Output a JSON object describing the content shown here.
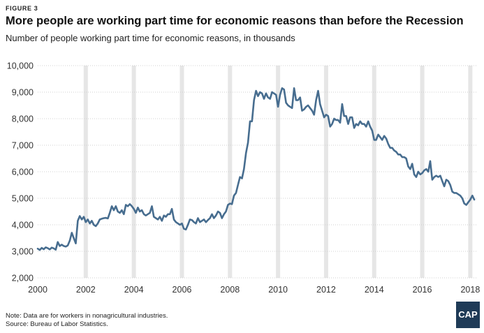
{
  "figure_label": "FIGURE 3",
  "notes": {
    "note": "Note: Data are for workers in nonagricultural industries.",
    "source": "Source: Bureau of Labor Statistics."
  },
  "logo": {
    "text": "CAP"
  },
  "colors": {
    "line": "#476d8f",
    "band": "#e6e6e6",
    "grid": "#d0d0d0"
  },
  "chart_data": {
    "type": "line",
    "title": "More people are working part time for economic reasons than before the Recession",
    "subtitle": "Number of people working part time for economic reasons, in thousands",
    "xlabel": "",
    "ylabel": "",
    "xlim": [
      2000,
      2018.25
    ],
    "ylim": [
      2000,
      10000
    ],
    "y_ticks": [
      2000,
      3000,
      4000,
      5000,
      6000,
      7000,
      8000,
      9000,
      10000
    ],
    "y_tick_labels": [
      "2,000",
      "3,000",
      "4,000",
      "5,000",
      "6,000",
      "7,000",
      "8,000",
      "9,000",
      "10,000"
    ],
    "x_ticks": [
      2000,
      2002,
      2004,
      2006,
      2008,
      2010,
      2012,
      2014,
      2016,
      2018
    ],
    "x_tick_labels": [
      "2000",
      "2002",
      "2004",
      "2006",
      "2008",
      "2010",
      "2012",
      "2014",
      "2016",
      "2018"
    ],
    "grid": true,
    "shaded_bands": [
      2002,
      2004,
      2006,
      2008,
      2010,
      2012,
      2014,
      2016,
      2018
    ],
    "series": [
      {
        "x": [
          2000.0,
          2000.083,
          2000.167,
          2000.25,
          2000.333,
          2000.417,
          2000.5,
          2000.583,
          2000.667,
          2000.75,
          2000.833,
          2000.917,
          2001.0,
          2001.083,
          2001.167,
          2001.25,
          2001.333,
          2001.417,
          2001.5,
          2001.583,
          2001.667,
          2001.75,
          2001.833,
          2001.917,
          2002.0,
          2002.083,
          2002.167,
          2002.25,
          2002.333,
          2002.417,
          2002.5,
          2002.583,
          2002.667,
          2002.75,
          2002.833,
          2002.917,
          2003.0,
          2003.083,
          2003.167,
          2003.25,
          2003.333,
          2003.417,
          2003.5,
          2003.583,
          2003.667,
          2003.75,
          2003.833,
          2003.917,
          2004.0,
          2004.083,
          2004.167,
          2004.25,
          2004.333,
          2004.417,
          2004.5,
          2004.583,
          2004.667,
          2004.75,
          2004.833,
          2004.917,
          2005.0,
          2005.083,
          2005.167,
          2005.25,
          2005.333,
          2005.417,
          2005.5,
          2005.583,
          2005.667,
          2005.75,
          2005.833,
          2005.917,
          2006.0,
          2006.083,
          2006.167,
          2006.25,
          2006.333,
          2006.417,
          2006.5,
          2006.583,
          2006.667,
          2006.75,
          2006.833,
          2006.917,
          2007.0,
          2007.083,
          2007.167,
          2007.25,
          2007.333,
          2007.417,
          2007.5,
          2007.583,
          2007.667,
          2007.75,
          2007.833,
          2007.917,
          2008.0,
          2008.083,
          2008.167,
          2008.25,
          2008.333,
          2008.417,
          2008.5,
          2008.583,
          2008.667,
          2008.75,
          2008.833,
          2008.917,
          2009.0,
          2009.083,
          2009.167,
          2009.25,
          2009.333,
          2009.417,
          2009.5,
          2009.583,
          2009.667,
          2009.75,
          2009.833,
          2009.917,
          2010.0,
          2010.083,
          2010.167,
          2010.25,
          2010.333,
          2010.417,
          2010.5,
          2010.583,
          2010.667,
          2010.75,
          2010.833,
          2010.917,
          2011.0,
          2011.083,
          2011.167,
          2011.25,
          2011.333,
          2011.417,
          2011.5,
          2011.583,
          2011.667,
          2011.75,
          2011.833,
          2011.917,
          2012.0,
          2012.083,
          2012.167,
          2012.25,
          2012.333,
          2012.417,
          2012.5,
          2012.583,
          2012.667,
          2012.75,
          2012.833,
          2012.917,
          2013.0,
          2013.083,
          2013.167,
          2013.25,
          2013.333,
          2013.417,
          2013.5,
          2013.583,
          2013.667,
          2013.75,
          2013.833,
          2013.917,
          2014.0,
          2014.083,
          2014.167,
          2014.25,
          2014.333,
          2014.417,
          2014.5,
          2014.583,
          2014.667,
          2014.75,
          2014.833,
          2014.917,
          2015.0,
          2015.083,
          2015.167,
          2015.25,
          2015.333,
          2015.417,
          2015.5,
          2015.583,
          2015.667,
          2015.75,
          2015.833,
          2015.917,
          2016.0,
          2016.083,
          2016.167,
          2016.25,
          2016.333,
          2016.417,
          2016.5,
          2016.583,
          2016.667,
          2016.75,
          2016.833,
          2016.917,
          2017.0,
          2017.083,
          2017.167,
          2017.25,
          2017.333,
          2017.417,
          2017.5,
          2017.583,
          2017.667,
          2017.75,
          2017.833,
          2017.917,
          2018.0,
          2018.083,
          2018.167
        ],
        "values": [
          3100,
          3050,
          3130,
          3080,
          3150,
          3120,
          3070,
          3140,
          3110,
          3060,
          3350,
          3200,
          3250,
          3200,
          3180,
          3220,
          3400,
          3700,
          3500,
          3300,
          4150,
          4330,
          4200,
          4300,
          4100,
          4200,
          4050,
          4150,
          4000,
          3950,
          4050,
          4200,
          4230,
          4250,
          4260,
          4240,
          4450,
          4700,
          4550,
          4700,
          4500,
          4450,
          4550,
          4400,
          4750,
          4700,
          4780,
          4700,
          4600,
          4450,
          4650,
          4500,
          4550,
          4400,
          4350,
          4400,
          4450,
          4700,
          4300,
          4250,
          4200,
          4300,
          4150,
          4350,
          4300,
          4400,
          4400,
          4600,
          4200,
          4100,
          4050,
          4000,
          4050,
          3850,
          3820,
          4000,
          4200,
          4180,
          4100,
          4050,
          4250,
          4100,
          4150,
          4200,
          4100,
          4180,
          4250,
          4400,
          4250,
          4350,
          4500,
          4450,
          4250,
          4400,
          4500,
          4750,
          4800,
          4780,
          5100,
          5200,
          5500,
          5800,
          5750,
          6100,
          6700,
          7100,
          7900,
          7900,
          8700,
          9050,
          8850,
          9000,
          8950,
          8750,
          8950,
          8800,
          8750,
          9000,
          8950,
          8900,
          8450,
          8900,
          9150,
          9100,
          8600,
          8500,
          8450,
          8400,
          9150,
          8700,
          8700,
          8800,
          8300,
          8350,
          8450,
          8500,
          8400,
          8300,
          8150,
          8700,
          9050,
          8550,
          8300,
          8050,
          8150,
          8100,
          7700,
          7800,
          8000,
          7950,
          7950,
          7850,
          8550,
          8100,
          8100,
          7800,
          8050,
          8050,
          7650,
          7800,
          7750,
          7900,
          7800,
          7800,
          7700,
          7900,
          7700,
          7550,
          7200,
          7200,
          7400,
          7300,
          7200,
          7350,
          7250,
          7050,
          6900,
          6900,
          6800,
          6750,
          6650,
          6650,
          6550,
          6550,
          6500,
          6200,
          6100,
          6300,
          5900,
          5800,
          6000,
          5900,
          5950,
          6050,
          6100,
          6000,
          6400,
          5700,
          5800,
          5850,
          5800,
          5850,
          5650,
          5450,
          5700,
          5650,
          5500,
          5250,
          5200,
          5200,
          5150,
          5100,
          5000,
          4800,
          4750,
          4850,
          4950,
          5100,
          4950
        ]
      }
    ]
  }
}
